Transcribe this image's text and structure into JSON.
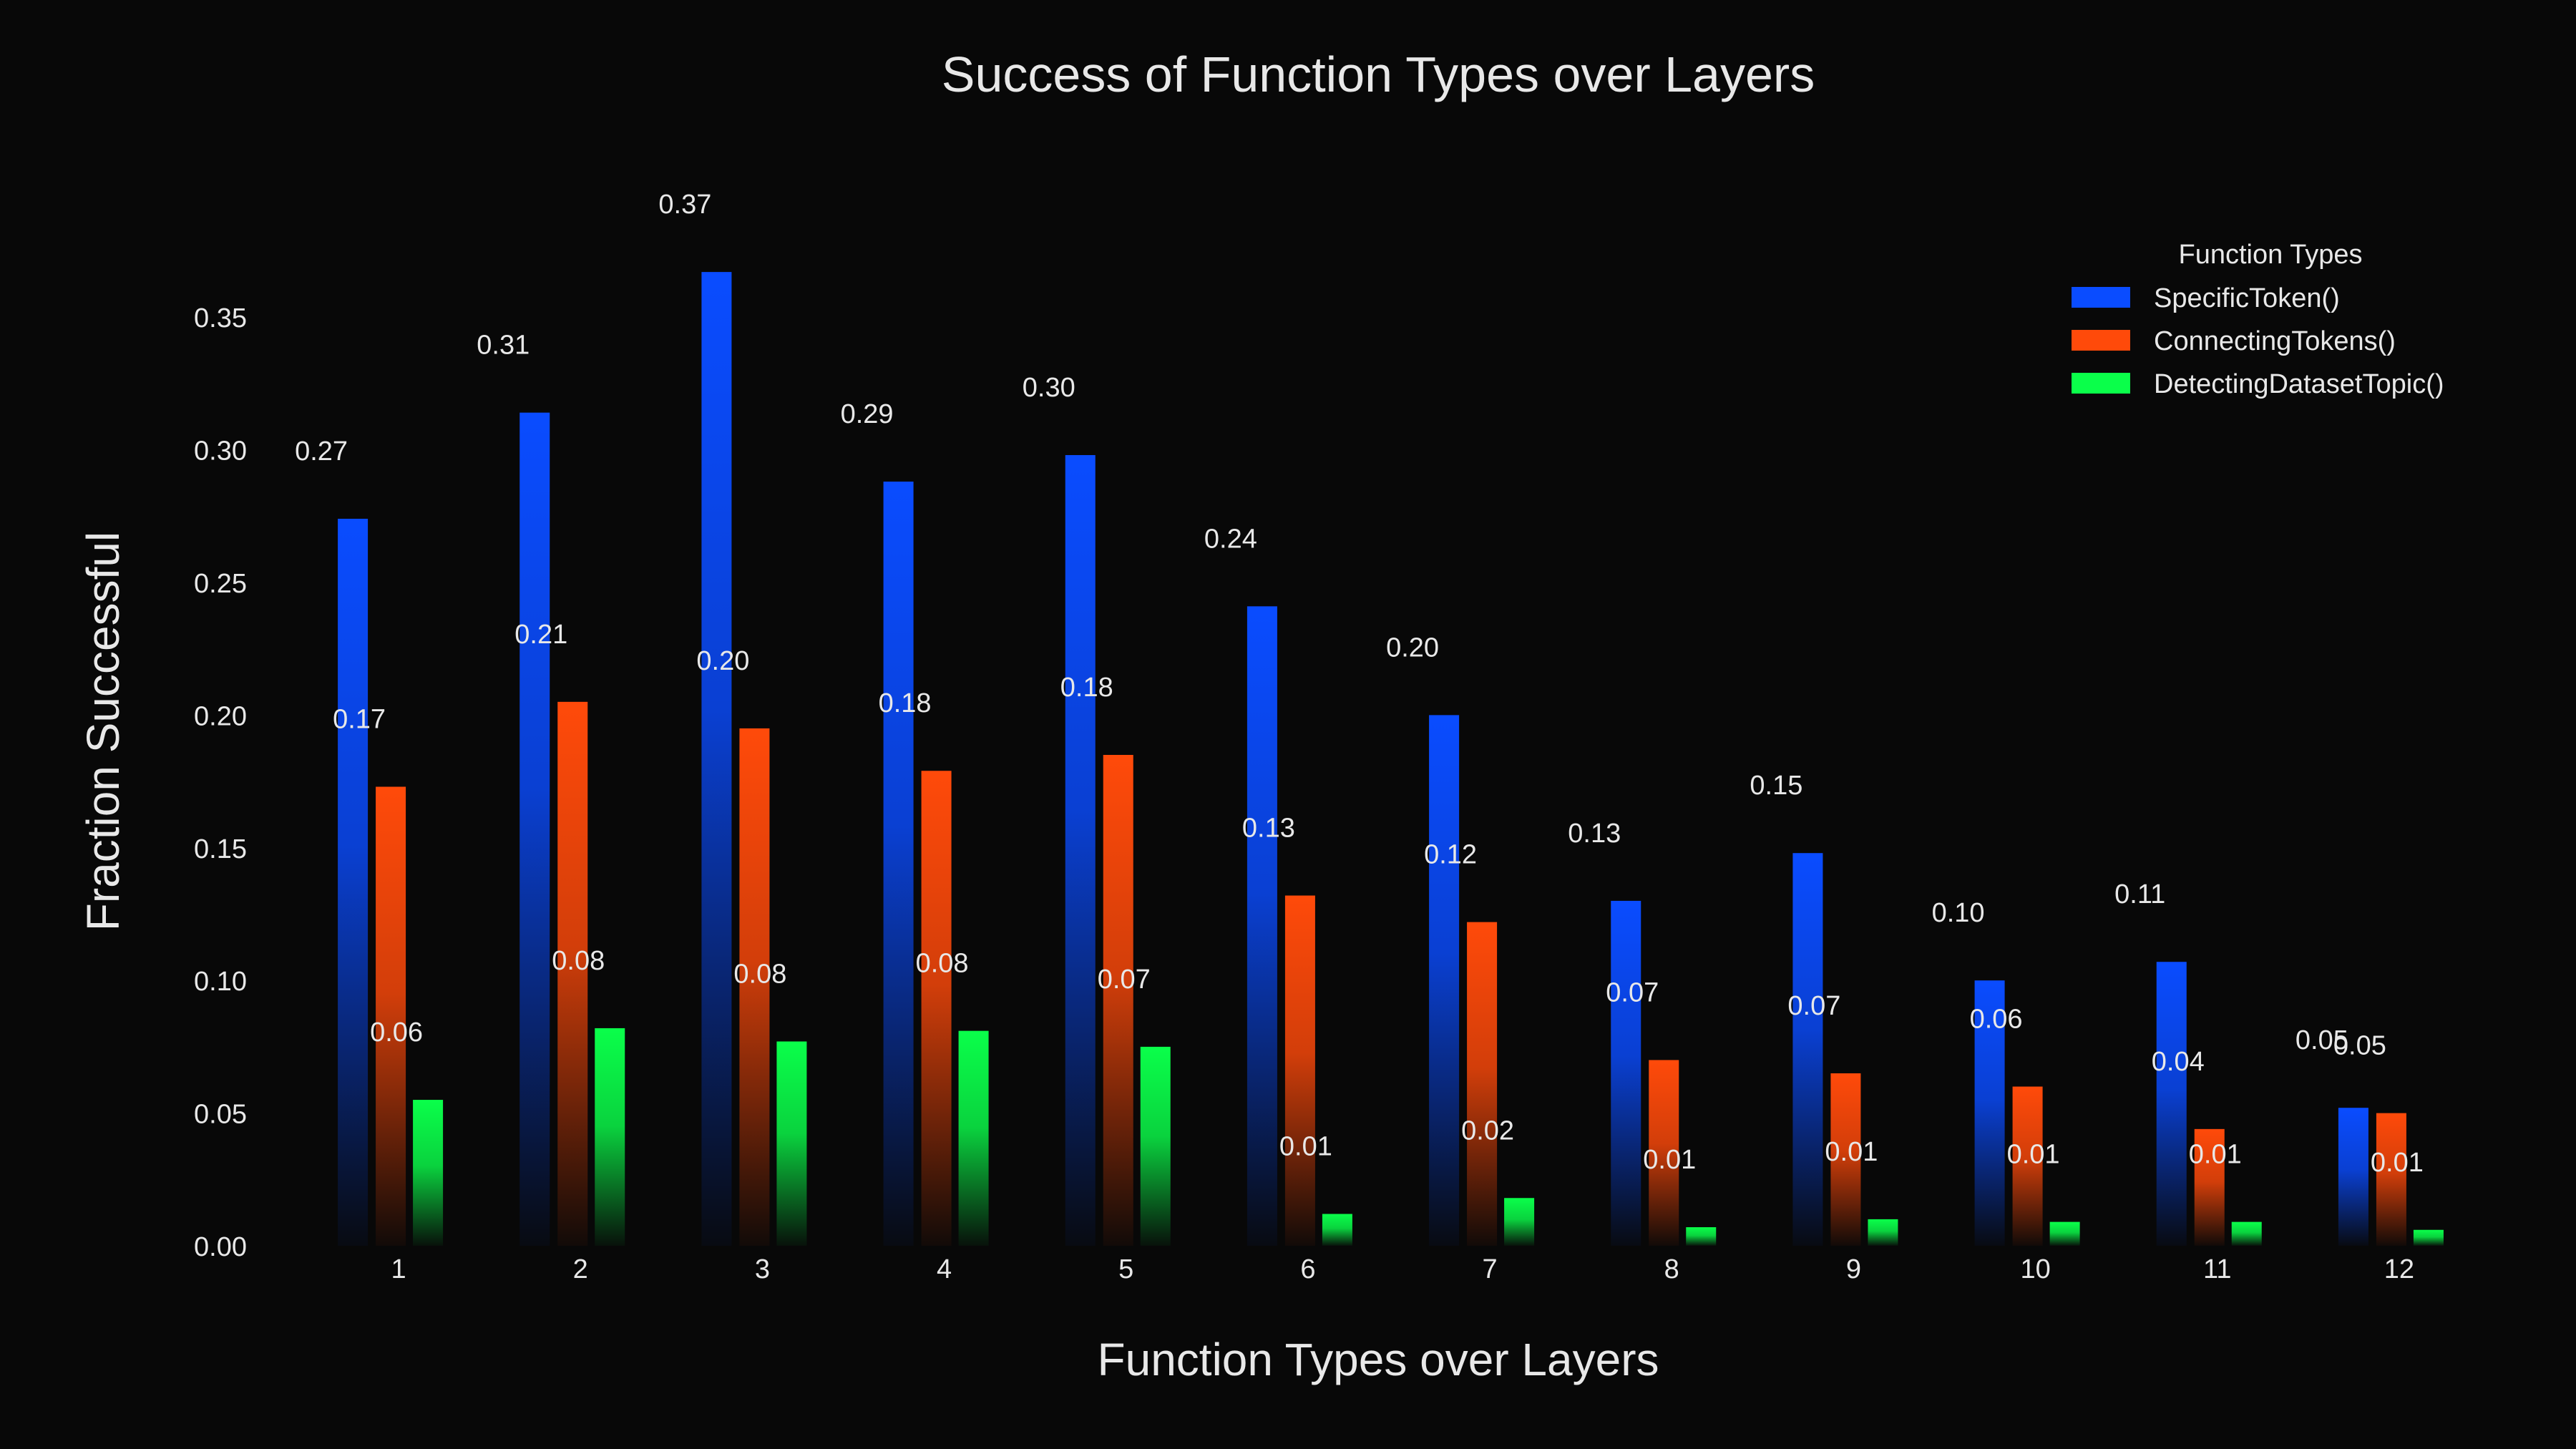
{
  "chart_data": {
    "type": "bar",
    "title": "Success of Function Types over Layers",
    "xlabel": "Function Types over Layers",
    "ylabel": "Fraction Successful",
    "categories": [
      "1",
      "2",
      "3",
      "4",
      "5",
      "6",
      "7",
      "8",
      "9",
      "10",
      "11",
      "12"
    ],
    "series": [
      {
        "name": "SpecificToken()",
        "color": "#0a4cff",
        "values": [
          0.274,
          0.314,
          0.367,
          0.288,
          0.298,
          0.241,
          0.2,
          0.13,
          0.148,
          0.1,
          0.107,
          0.052
        ],
        "labels": [
          "0.27",
          "0.31",
          "0.37",
          "0.29",
          "0.30",
          "0.24",
          "0.20",
          "0.13",
          "0.15",
          "0.10",
          "0.11",
          "0.05"
        ]
      },
      {
        "name": "ConnectingTokens()",
        "color": "#ff4a0a",
        "values": [
          0.173,
          0.205,
          0.195,
          0.179,
          0.185,
          0.132,
          0.122,
          0.07,
          0.065,
          0.06,
          0.044,
          0.05
        ],
        "labels": [
          "0.17",
          "0.21",
          "0.20",
          "0.18",
          "0.18",
          "0.13",
          "0.12",
          "0.07",
          "0.07",
          "0.06",
          "0.04",
          "0.05"
        ]
      },
      {
        "name": "DetectingDatasetTopic()",
        "color": "#0aff4a",
        "values": [
          0.055,
          0.082,
          0.077,
          0.081,
          0.075,
          0.012,
          0.018,
          0.007,
          0.01,
          0.009,
          0.009,
          0.006
        ],
        "labels": [
          "0.06",
          "0.08",
          "0.08",
          "0.08",
          "0.07",
          "0.01",
          "0.02",
          "0.01",
          "0.01",
          "0.01",
          "0.01",
          "0.01"
        ]
      }
    ],
    "yticks": [
      "0.00",
      "0.05",
      "0.10",
      "0.15",
      "0.20",
      "0.25",
      "0.30",
      "0.35"
    ],
    "ylim": [
      0,
      0.37
    ],
    "legend": {
      "title": "Function Types",
      "position": "top-right"
    },
    "grid": false,
    "background": "#080808"
  }
}
